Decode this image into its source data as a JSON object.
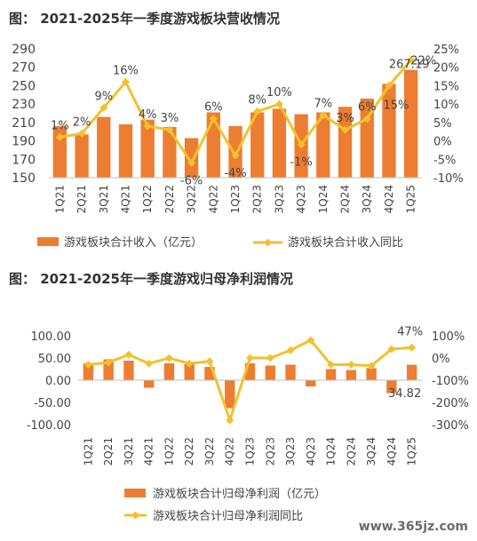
{
  "chart_data": [
    {
      "type": "bar",
      "title": "图：  2021-2025年一季度游戏板块营收情况",
      "categories": [
        "1Q21",
        "2Q21",
        "3Q21",
        "4Q21",
        "1Q22",
        "2Q22",
        "3Q22",
        "4Q22",
        "1Q23",
        "2Q23",
        "3Q23",
        "4Q23",
        "1Q24",
        "2Q24",
        "3Q24",
        "4Q24",
        "1Q25"
      ],
      "ylim": [
        150,
        290
      ],
      "yticks": [
        150,
        170,
        190,
        210,
        230,
        250,
        270,
        290
      ],
      "y2lim": [
        -10,
        25
      ],
      "y2ticks": [
        "-10%",
        "-5%",
        "0%",
        "5%",
        "10%",
        "15%",
        "20%",
        "25%"
      ],
      "series": [
        {
          "name": "游戏板块合计收入（亿元）",
          "type": "bar",
          "axis": "left",
          "values": [
            206,
            197,
            216,
            208,
            213,
            205,
            193,
            221,
            206,
            221,
            225,
            219,
            221,
            227,
            236,
            252,
            267.19
          ]
        },
        {
          "name": "游戏板块合计收入同比",
          "type": "line",
          "axis": "right",
          "values": [
            1,
            2,
            9,
            16,
            4,
            3,
            -6,
            6,
            -4,
            8,
            10,
            -1,
            7,
            3,
            6,
            15,
            22
          ]
        }
      ],
      "value_labels": [
        {
          "i": 16,
          "text": "267.19"
        }
      ],
      "pct_labels": [
        "1%",
        "2%",
        "9%",
        "16%",
        "4%",
        "3%",
        "-6%",
        "6%",
        "-4%",
        "8%",
        "10%",
        "-1%",
        "7%",
        "3%",
        "6%",
        "15%",
        "22%"
      ]
    },
    {
      "type": "bar",
      "title": "图：  2021-2025年一季度游戏归母净利润情况",
      "categories": [
        "1Q21",
        "2Q21",
        "3Q21",
        "4Q21",
        "1Q22",
        "2Q22",
        "3Q22",
        "4Q22",
        "1Q23",
        "2Q23",
        "3Q23",
        "4Q23",
        "1Q24",
        "2Q24",
        "3Q24",
        "4Q24",
        "1Q25"
      ],
      "ylim": [
        -100,
        100
      ],
      "yticks": [
        "-100.00",
        "-50.00",
        "0.00",
        "50.00",
        "100.00"
      ],
      "y2lim": [
        -300,
        100
      ],
      "y2ticks": [
        "-300%",
        "-200%",
        "-100%",
        "0%",
        "100%"
      ],
      "series": [
        {
          "name": "游戏板块合计归母净利润（亿元）",
          "type": "bar",
          "axis": "left",
          "values": [
            38,
            47,
            44,
            -17,
            38,
            36,
            30,
            -63,
            38,
            33,
            35,
            -14,
            25,
            23,
            27,
            -29,
            34.82
          ]
        },
        {
          "name": "游戏板块合计归母净利润同比",
          "type": "line",
          "axis": "right",
          "values": [
            -30,
            -20,
            15,
            -25,
            0,
            -25,
            -15,
            -280,
            0,
            0,
            35,
            80,
            -30,
            -30,
            -35,
            40,
            47
          ]
        }
      ],
      "value_labels": [
        {
          "i": 16,
          "text": "34.82"
        }
      ],
      "pct_labels": [
        {
          "i": 16,
          "text": "47%"
        }
      ]
    }
  ],
  "watermark": "www.365jz.com",
  "colors": {
    "bar": "#ED7D31",
    "line": "#F2C12E",
    "marker": "#F2C12E",
    "text": "#444444"
  }
}
